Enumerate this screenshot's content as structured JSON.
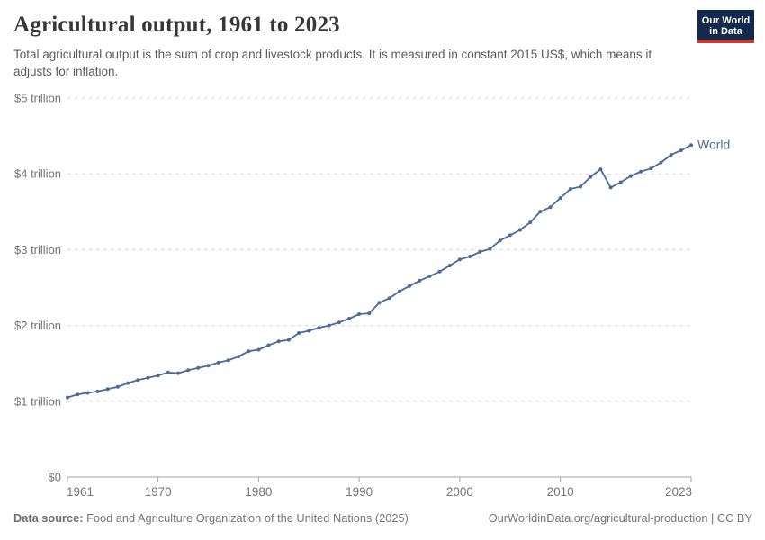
{
  "header": {
    "title": "Agricultural output, 1961 to 2023",
    "subtitle": "Total agricultural output is the sum of crop and livestock products. It is measured in constant 2015 US$, which means it adjusts for inflation.",
    "logo": {
      "line1": "Our World",
      "line2": "in Data"
    }
  },
  "footer": {
    "datasource_label": "Data source:",
    "datasource_value": " Food and Agriculture Organization of the United Nations (2025)",
    "attribution": "OurWorldinData.org/agricultural-production | CC BY"
  },
  "colors": {
    "series": "#4c6a9c",
    "grid": "#d9d9d9",
    "axis": "#a3a3a3",
    "tick_label": "#757575",
    "logo_navy": "#12294d",
    "logo_red": "#c73a36"
  },
  "chart_data": {
    "type": "line",
    "title": "Agricultural output, 1961 to 2023",
    "xlabel": "",
    "ylabel": "",
    "unit": "trillion constant 2015 US$",
    "xlim": [
      1961,
      2023
    ],
    "ylim": [
      0,
      5
    ],
    "grid": "horizontal-dashed",
    "legend": "end-of-line-label",
    "yticks": [
      {
        "value": 0,
        "label": "$0"
      },
      {
        "value": 1,
        "label": "$1 trillion"
      },
      {
        "value": 2,
        "label": "$2 trillion"
      },
      {
        "value": 3,
        "label": "$3 trillion"
      },
      {
        "value": 4,
        "label": "$4 trillion"
      },
      {
        "value": 5,
        "label": "$5 trillion"
      }
    ],
    "xticks": [
      1961,
      1970,
      1980,
      1990,
      2000,
      2010,
      2023
    ],
    "series": [
      {
        "name": "World",
        "color": "#4c6a9c",
        "x": [
          1961,
          1962,
          1963,
          1964,
          1965,
          1966,
          1967,
          1968,
          1969,
          1970,
          1971,
          1972,
          1973,
          1974,
          1975,
          1976,
          1977,
          1978,
          1979,
          1980,
          1981,
          1982,
          1983,
          1984,
          1985,
          1986,
          1987,
          1988,
          1989,
          1990,
          1991,
          1992,
          1993,
          1994,
          1995,
          1996,
          1997,
          1998,
          1999,
          2000,
          2001,
          2002,
          2003,
          2004,
          2005,
          2006,
          2007,
          2008,
          2009,
          2010,
          2011,
          2012,
          2013,
          2014,
          2015,
          2016,
          2017,
          2018,
          2019,
          2020,
          2021,
          2022,
          2023
        ],
        "values": [
          1.05,
          1.09,
          1.11,
          1.13,
          1.16,
          1.19,
          1.24,
          1.28,
          1.31,
          1.34,
          1.38,
          1.37,
          1.41,
          1.44,
          1.47,
          1.51,
          1.54,
          1.59,
          1.66,
          1.68,
          1.74,
          1.79,
          1.81,
          1.9,
          1.93,
          1.97,
          2.0,
          2.04,
          2.09,
          2.15,
          2.16,
          2.3,
          2.36,
          2.45,
          2.52,
          2.59,
          2.65,
          2.71,
          2.79,
          2.87,
          2.91,
          2.97,
          3.01,
          3.12,
          3.19,
          3.26,
          3.36,
          3.5,
          3.56,
          3.68,
          3.8,
          3.83,
          3.96,
          4.06,
          3.82,
          3.89,
          3.97,
          4.03,
          4.07,
          4.15,
          4.25,
          4.31,
          4.38
        ]
      }
    ]
  }
}
